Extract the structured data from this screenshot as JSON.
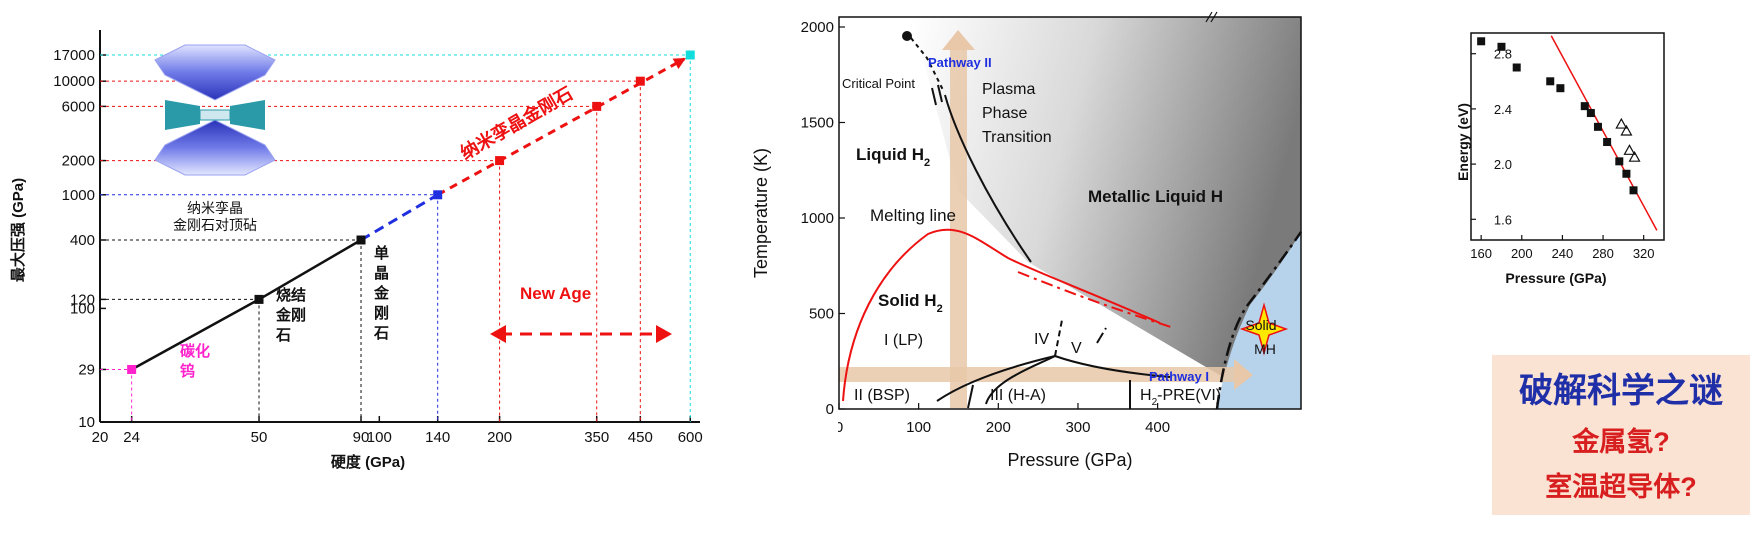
{
  "chart_data": [
    {
      "type": "line",
      "panel": "pressure-vs-hardness",
      "xlabel": "硬度 (GPa)",
      "ylabel": "最大压强 (GPa)",
      "x_ticks": [
        20,
        24,
        50,
        90,
        100,
        140,
        200,
        350,
        450,
        600
      ],
      "y_ticks": [
        10,
        29,
        100,
        120,
        400,
        1000,
        2000,
        6000,
        10000,
        17000
      ],
      "x_scale": "log",
      "y_scale": "log",
      "xlim": [
        20,
        700
      ],
      "ylim": [
        10,
        17000
      ],
      "points": [
        {
          "x": 24,
          "y": 29,
          "color": "#ff22cc",
          "label": "碳化钨"
        },
        {
          "x": 50,
          "y": 120,
          "color": "#111111",
          "label": "烧结金刚石"
        },
        {
          "x": 90,
          "y": 400,
          "color": "#111111",
          "label": "单晶金刚石"
        },
        {
          "x": 140,
          "y": 1000,
          "color": "#1f2fe0",
          "label": ""
        },
        {
          "x": 200,
          "y": 2000,
          "color": "#ee1111",
          "label": ""
        },
        {
          "x": 350,
          "y": 6000,
          "color": "#ee1111",
          "label": ""
        },
        {
          "x": 450,
          "y": 10000,
          "color": "#ee1111",
          "label": ""
        },
        {
          "x": 600,
          "y": 17000,
          "color": "#11dddd",
          "label": ""
        }
      ],
      "annotations": {
        "nano_diamond": "纳米孪晶金刚石",
        "anvil_line1": "纳米孪晶",
        "anvil_line2": "金刚石对顶砧",
        "new_age": "New Age"
      }
    },
    {
      "type": "phase-diagram",
      "panel": "hydrogen-phase-diagram",
      "xlabel": "Pressure (GPa)",
      "ylabel": "Temperature (K)",
      "xlim": [
        0,
        580
      ],
      "ylim": [
        0,
        2000
      ],
      "x_ticks": [
        0,
        100,
        200,
        300,
        400
      ],
      "y_ticks": [
        0,
        500,
        1000,
        1500,
        2000
      ],
      "labels": {
        "critical_point": "Critical Point",
        "pathway2": "Pathway II",
        "pathway1": "Pathway I",
        "plasma1": "Plasma",
        "plasma2": "Phase",
        "plasma3": "Transition",
        "liquid_h2": "Liquid H",
        "sub2": "2",
        "metallic": "Metallic Liquid H",
        "melting": "Melting line",
        "solid_h2": "Solid H",
        "phase_I": "I (LP)",
        "phase_IV": "IV",
        "phase_V": "V",
        "phase_II": "II (BSP)",
        "phase_III": "III (H-A)",
        "phase_pre_a": "H",
        "phase_pre_b": "-PRE(VI)",
        "solid_mh1": "Solid",
        "solid_mh2": "MH"
      }
    },
    {
      "type": "scatter",
      "panel": "energy-vs-pressure",
      "xlabel": "Pressure (GPa)",
      "ylabel": "Energy (eV)",
      "xlim": [
        150,
        340
      ],
      "ylim": [
        1.45,
        2.95
      ],
      "x_ticks": [
        160,
        200,
        240,
        280,
        320
      ],
      "y_ticks": [
        1.6,
        2.0,
        2.4,
        2.8
      ],
      "series": [
        {
          "name": "filled",
          "marker": "square",
          "points": [
            [
              160,
              2.89
            ],
            [
              180,
              2.85
            ],
            [
              195,
              2.7
            ],
            [
              228,
              2.6
            ],
            [
              238,
              2.55
            ],
            [
              262,
              2.42
            ],
            [
              268,
              2.37
            ],
            [
              275,
              2.27
            ],
            [
              284,
              2.16
            ],
            [
              296,
              2.02
            ],
            [
              303,
              1.93
            ],
            [
              310,
              1.81
            ]
          ]
        },
        {
          "name": "open",
          "marker": "triangle",
          "points": [
            [
              298,
              2.29
            ],
            [
              303,
              2.24
            ],
            [
              306,
              2.1
            ],
            [
              311,
              2.05
            ]
          ]
        }
      ],
      "fit_line": [
        [
          229,
          2.93
        ],
        [
          333,
          1.52
        ]
      ]
    }
  ],
  "callout": {
    "line1": "破解科学之谜",
    "line2": "金属氢?",
    "line3": "室温超导体?"
  }
}
